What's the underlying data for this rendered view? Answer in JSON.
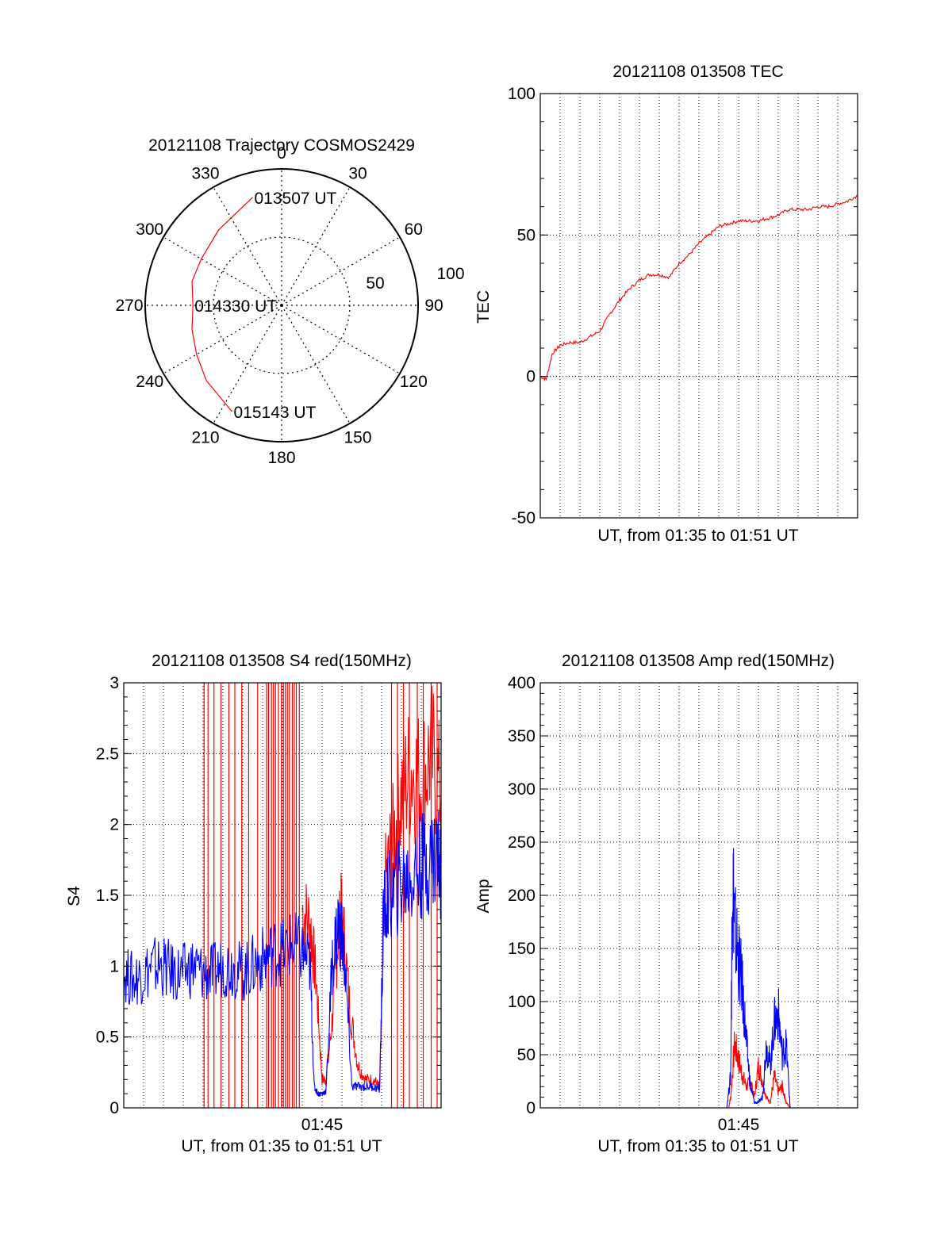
{
  "colors": {
    "red": "#ff0000",
    "blue": "#0000ff",
    "grid": "#000000"
  },
  "chart_data": [
    {
      "id": "trajectory",
      "type": "polar",
      "title": "20121108 Trajectory COSMOS2429",
      "azimuth_labels": [
        "0",
        "30",
        "60",
        "90",
        "120",
        "150",
        "180",
        "210",
        "240",
        "270",
        "300",
        "330"
      ],
      "azimuths": [
        0,
        30,
        60,
        90,
        120,
        150,
        180,
        210,
        240,
        270,
        300,
        330
      ],
      "radial_labels": [
        "50",
        "100"
      ],
      "radial_values": [
        50,
        100
      ],
      "trajectory": {
        "color": "#ff0000",
        "points": [
          {
            "az": 345,
            "r": 82
          },
          {
            "az": 320,
            "r": 72
          },
          {
            "az": 300,
            "r": 68
          },
          {
            "az": 285,
            "r": 68
          },
          {
            "az": 270,
            "r": 65
          },
          {
            "az": 255,
            "r": 68
          },
          {
            "az": 240,
            "r": 72
          },
          {
            "az": 225,
            "r": 78
          },
          {
            "az": 205,
            "r": 86
          }
        ],
        "labels": [
          {
            "text": "013507 UT",
            "az": 345,
            "r": 82
          },
          {
            "text": "014330 UT",
            "az": 270,
            "r": 65
          },
          {
            "text": "015143 UT",
            "az": 205,
            "r": 86
          }
        ]
      }
    },
    {
      "id": "tec",
      "type": "line",
      "title": "20121108 013508 TEC",
      "ylabel": "TEC",
      "xlabel": "UT, from 01:35 to 01:51 UT",
      "ylim": [
        -50,
        100
      ],
      "yticks": [
        -50,
        0,
        50,
        100
      ],
      "xlim": [
        0,
        16
      ],
      "xtick_labels": [],
      "series": [
        {
          "color": "#ff0000",
          "x": [
            0,
            0.3,
            0.6,
            1.0,
            1.5,
            2.0,
            2.5,
            3.0,
            3.5,
            4.0,
            4.5,
            5.0,
            5.5,
            6.0,
            6.5,
            7.0,
            7.5,
            8.0,
            8.5,
            9.0,
            9.5,
            10.0,
            10.5,
            11.0,
            11.5,
            12.0,
            12.5,
            13.0,
            13.5,
            14.0,
            14.5,
            15.0,
            15.5,
            16.0
          ],
          "y": [
            0,
            -1,
            8,
            11,
            12,
            12,
            14,
            16,
            22,
            27,
            31,
            34,
            36,
            36,
            35,
            40,
            43,
            47,
            50,
            53,
            54,
            55,
            55,
            55,
            56,
            57,
            59,
            59,
            59,
            60,
            60,
            61,
            62,
            64
          ]
        }
      ]
    },
    {
      "id": "s4",
      "type": "line",
      "title": "20121108 013508 S4 red(150MHz)",
      "ylabel": "S4",
      "xlabel": "UT, from 01:35 to 01:51 UT",
      "ylim": [
        0,
        3
      ],
      "yticks": [
        0,
        0.5,
        1,
        1.5,
        2,
        2.5,
        3
      ],
      "ytick_labels": [
        "0",
        "0.5",
        "1",
        "1.5",
        "2",
        "2.5",
        "3"
      ],
      "xlim": [
        0,
        16
      ],
      "xtick_labels": [
        {
          "x": 10,
          "label": "01:45"
        }
      ],
      "red_spikes_x": [
        4.05,
        4.25,
        4.55,
        4.9,
        5.3,
        5.6,
        5.95,
        6.3,
        6.75,
        7.2,
        7.3,
        7.45,
        7.55,
        7.65,
        7.8,
        7.95,
        8.05,
        8.15,
        8.25,
        8.35,
        8.5,
        8.6,
        8.7,
        8.85,
        13.5,
        13.8,
        14.1,
        14.4,
        14.8,
        15.1,
        15.5,
        15.8
      ],
      "series": [
        {
          "name": "",
          "color": "#ff0000",
          "x": [
            9.0,
            9.4,
            9.7,
            10.0,
            10.2,
            10.5,
            10.8,
            11.0,
            11.4,
            11.8,
            12.2,
            12.6,
            12.9,
            13.2,
            13.6,
            14.0,
            14.5,
            15.0,
            15.5,
            16.0
          ],
          "y": [
            1.4,
            1.3,
            0.9,
            0.2,
            0.2,
            0.6,
            1.2,
            1.4,
            0.7,
            0.3,
            0.2,
            0.2,
            0.15,
            1.6,
            1.9,
            2.2,
            2.4,
            2.3,
            2.5,
            2.2
          ]
        },
        {
          "name": "",
          "color": "#0000ff",
          "x": [
            0,
            0.5,
            1.0,
            1.5,
            2.0,
            2.5,
            3.0,
            3.5,
            4.0,
            4.5,
            5.0,
            5.5,
            6.0,
            6.5,
            7.0,
            7.5,
            8.0,
            8.5,
            9.0,
            9.4,
            9.6,
            9.8,
            10.0,
            10.2,
            10.5,
            10.8,
            11.0,
            11.2,
            11.5,
            11.8,
            12.2,
            12.6,
            12.9,
            13.1,
            13.4,
            13.8,
            14.2,
            14.6,
            15.0,
            15.4,
            15.8,
            16.0
          ],
          "y": [
            0.95,
            0.9,
            0.95,
            1.0,
            1.0,
            0.95,
            0.95,
            1.0,
            0.95,
            0.95,
            1.0,
            1.0,
            0.95,
            1.0,
            1.05,
            1.1,
            1.1,
            1.15,
            1.1,
            1.0,
            0.15,
            0.1,
            0.1,
            0.12,
            1.0,
            1.3,
            1.2,
            0.9,
            0.15,
            0.15,
            0.15,
            0.15,
            0.13,
            1.4,
            1.5,
            1.55,
            1.6,
            1.65,
            1.7,
            1.75,
            1.8,
            1.7
          ]
        }
      ]
    },
    {
      "id": "amp",
      "type": "line",
      "title": "20121108 013508 Amp red(150MHz)",
      "ylabel": "Amp",
      "xlabel": "UT, from 01:35 to 01:51 UT",
      "ylim": [
        0,
        400
      ],
      "yticks": [
        0,
        50,
        100,
        150,
        200,
        250,
        300,
        350,
        400
      ],
      "xlim": [
        0,
        16
      ],
      "xtick_labels": [
        {
          "x": 10,
          "label": "01:45"
        }
      ],
      "series": [
        {
          "name": "",
          "color": "#ff0000",
          "x": [
            0,
            9.5,
            9.6,
            9.8,
            10.0,
            10.2,
            10.4,
            10.6,
            10.8,
            11.0,
            11.2,
            11.4,
            11.6,
            11.8,
            12.0,
            12.2,
            12.4,
            12.6,
            12.8,
            13.0,
            16.0
          ],
          "y": [
            0,
            0,
            10,
            60,
            45,
            30,
            20,
            25,
            10,
            40,
            25,
            10,
            5,
            30,
            15,
            20,
            5,
            0,
            0,
            0,
            0
          ]
        },
        {
          "name": "",
          "color": "#0000ff",
          "x": [
            0,
            9.4,
            9.6,
            9.7,
            9.8,
            10.0,
            10.2,
            10.4,
            10.6,
            10.8,
            11.0,
            11.2,
            11.4,
            11.6,
            11.8,
            12.0,
            12.2,
            12.4,
            12.6,
            12.8,
            13.0,
            16.0
          ],
          "y": [
            0,
            0,
            30,
            225,
            170,
            140,
            110,
            60,
            20,
            5,
            5,
            10,
            60,
            40,
            80,
            90,
            50,
            60,
            0,
            0,
            0,
            0
          ]
        }
      ]
    }
  ]
}
